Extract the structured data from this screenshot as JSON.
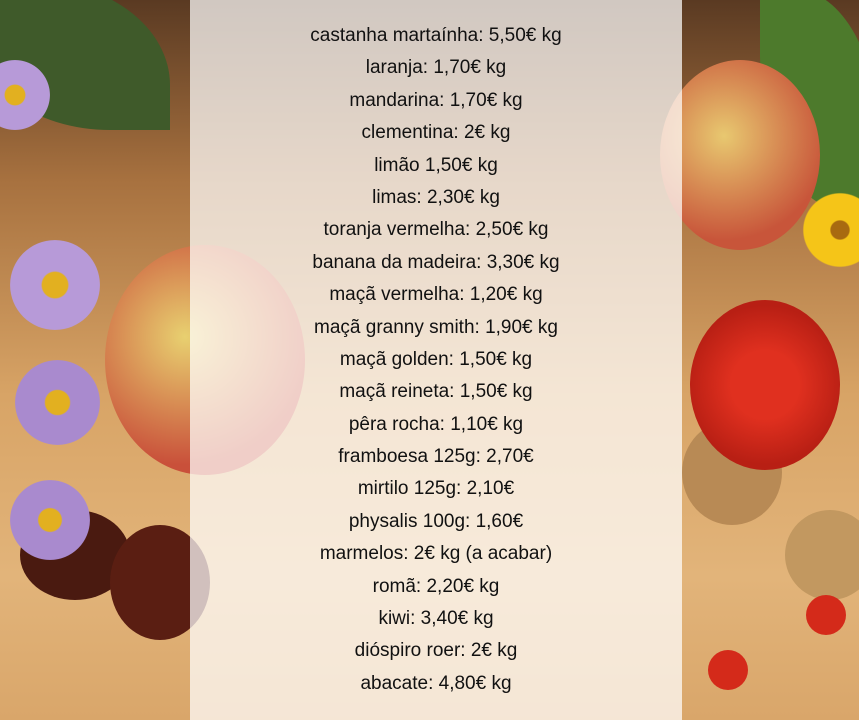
{
  "price_list": [
    "castanha martaínha: 5,50€ kg",
    "laranja: 1,70€ kg",
    "mandarina: 1,70€ kg",
    "clementina: 2€ kg",
    "limão 1,50€ kg",
    "limas: 2,30€ kg",
    "toranja vermelha: 2,50€ kg",
    "banana da madeira: 3,30€ kg",
    "maçã vermelha: 1,20€ kg",
    "maçã granny smith: 1,90€ kg",
    "maçã golden: 1,50€ kg",
    "maçã reineta: 1,50€ kg",
    "pêra rocha: 1,10€ kg",
    "framboesa 125g: 2,70€",
    "mirtilo 125g: 2,10€",
    "physalis 100g: 1,60€",
    "marmelos: 2€ kg (a acabar)",
    "romã: 2,20€ kg",
    "kiwi: 3,40€ kg",
    "dióspiro roer: 2€ kg",
    "abacate: 4,80€ kg"
  ],
  "colors": {
    "panel": "#ffffff",
    "text": "#111111",
    "berry": "#d42a1a",
    "apple": "#c9503a"
  }
}
